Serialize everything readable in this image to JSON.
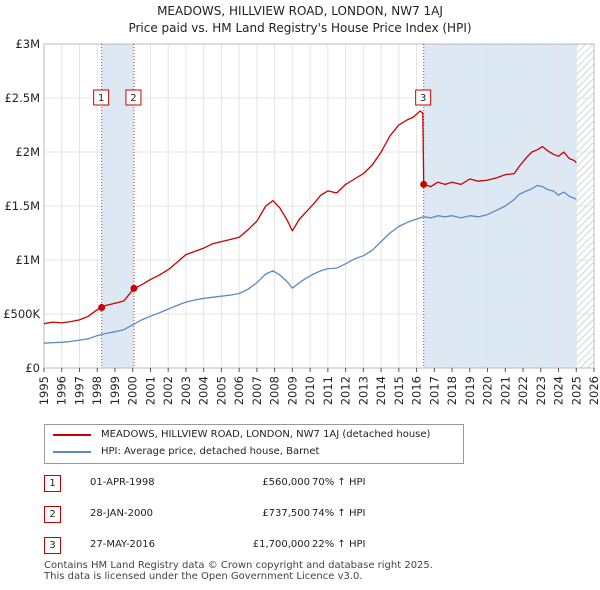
{
  "title": "MEADOWS, HILLVIEW ROAD, LONDON, NW7 1AJ",
  "subtitle": "Price paid vs. HM Land Registry's House Price Index (HPI)",
  "colors": {
    "property": "#cc0000",
    "hpi": "#5b8ac6",
    "shade": "#dde8f5",
    "hatch": "#c0c8d4",
    "grid": "#e4e4e4"
  },
  "chart_data": {
    "type": "line",
    "title": "MEADOWS, HILLVIEW ROAD, LONDON, NW7 1AJ",
    "subtitle": "Price paid vs. HM Land Registry's House Price Index (HPI)",
    "xlim": [
      1995,
      2026
    ],
    "ylim": [
      0,
      3000000
    ],
    "y_ticks": [
      {
        "value": 0,
        "label": "£0"
      },
      {
        "value": 500000,
        "label": "£500K"
      },
      {
        "value": 1000000,
        "label": "£1M"
      },
      {
        "value": 1500000,
        "label": "£1.5M"
      },
      {
        "value": 2000000,
        "label": "£2M"
      },
      {
        "value": 2500000,
        "label": "£2.5M"
      },
      {
        "value": 3000000,
        "label": "£3M"
      }
    ],
    "x_ticks": [
      "1995",
      "1996",
      "1997",
      "1998",
      "1999",
      "2000",
      "2001",
      "2002",
      "2003",
      "2004",
      "2005",
      "2006",
      "2007",
      "2008",
      "2009",
      "2010",
      "2011",
      "2012",
      "2013",
      "2014",
      "2015",
      "2016",
      "2017",
      "2018",
      "2019",
      "2020",
      "2021",
      "2022",
      "2023",
      "2024",
      "2025",
      "2026"
    ],
    "shaded_ranges": [
      [
        1998.25,
        2000.07
      ],
      [
        2016.4,
        2025.0
      ]
    ],
    "hatched_range": [
      2025.0,
      2026.0
    ],
    "series": [
      {
        "name": "MEADOWS, HILLVIEW ROAD, LONDON, NW7 1AJ (detached house)",
        "color": "#cc0000",
        "x": [
          1995.0,
          1995.5,
          1996.0,
          1996.5,
          1997.0,
          1997.5,
          1998.0,
          1998.25,
          1998.5,
          1999.0,
          1999.5,
          2000.07,
          2000.5,
          2001.0,
          2001.5,
          2002.0,
          2002.5,
          2003.0,
          2003.5,
          2004.0,
          2004.5,
          2005.0,
          2005.5,
          2006.0,
          2006.5,
          2007.0,
          2007.5,
          2007.9,
          2008.3,
          2008.7,
          2009.0,
          2009.4,
          2009.8,
          2010.2,
          2010.6,
          2011.0,
          2011.5,
          2012.0,
          2012.5,
          2013.0,
          2013.5,
          2014.0,
          2014.5,
          2015.0,
          2015.5,
          2015.8,
          2016.0,
          2016.2,
          2016.35,
          2016.4,
          2016.8,
          2017.2,
          2017.6,
          2018.0,
          2018.5,
          2019.0,
          2019.5,
          2020.0,
          2020.5,
          2021.0,
          2021.5,
          2021.8,
          2022.2,
          2022.5,
          2022.8,
          2023.1,
          2023.4,
          2023.7,
          2024.0,
          2024.3,
          2024.6,
          2024.9,
          2025.0
        ],
        "y": [
          410000,
          425000,
          418000,
          430000,
          445000,
          480000,
          540000,
          560000,
          580000,
          600000,
          620000,
          737500,
          770000,
          820000,
          860000,
          910000,
          980000,
          1050000,
          1080000,
          1110000,
          1150000,
          1170000,
          1190000,
          1210000,
          1280000,
          1360000,
          1500000,
          1550000,
          1480000,
          1370000,
          1270000,
          1380000,
          1450000,
          1520000,
          1600000,
          1640000,
          1620000,
          1700000,
          1750000,
          1800000,
          1880000,
          2000000,
          2150000,
          2250000,
          2300000,
          2320000,
          2350000,
          2380000,
          2360000,
          1700000,
          1680000,
          1720000,
          1700000,
          1720000,
          1700000,
          1750000,
          1730000,
          1740000,
          1760000,
          1790000,
          1800000,
          1870000,
          1950000,
          2000000,
          2020000,
          2050000,
          2010000,
          1980000,
          1960000,
          2000000,
          1940000,
          1920000,
          1900000
        ]
      },
      {
        "name": "HPI: Average price, detached house, Barnet",
        "color": "#5b8ac6",
        "x": [
          1995.0,
          1995.5,
          1996.0,
          1996.5,
          1997.0,
          1997.5,
          1998.0,
          1998.5,
          1999.0,
          1999.5,
          2000.0,
          2000.5,
          2001.0,
          2001.5,
          2002.0,
          2002.5,
          2003.0,
          2003.5,
          2004.0,
          2004.5,
          2005.0,
          2005.5,
          2006.0,
          2006.5,
          2007.0,
          2007.5,
          2007.9,
          2008.3,
          2008.7,
          2009.0,
          2009.4,
          2009.8,
          2010.2,
          2010.6,
          2011.0,
          2011.5,
          2012.0,
          2012.5,
          2013.0,
          2013.5,
          2014.0,
          2014.5,
          2015.0,
          2015.5,
          2016.0,
          2016.4,
          2016.8,
          2017.2,
          2017.6,
          2018.0,
          2018.5,
          2019.0,
          2019.5,
          2020.0,
          2020.5,
          2021.0,
          2021.5,
          2021.8,
          2022.2,
          2022.5,
          2022.8,
          2023.1,
          2023.4,
          2023.7,
          2024.0,
          2024.3,
          2024.6,
          2024.9,
          2025.0
        ],
        "y": [
          230000,
          235000,
          238000,
          245000,
          258000,
          270000,
          300000,
          320000,
          335000,
          355000,
          400000,
          445000,
          480000,
          510000,
          545000,
          580000,
          610000,
          630000,
          645000,
          655000,
          665000,
          675000,
          690000,
          730000,
          790000,
          870000,
          900000,
          860000,
          800000,
          740000,
          790000,
          835000,
          870000,
          900000,
          920000,
          925000,
          965000,
          1010000,
          1040000,
          1090000,
          1170000,
          1250000,
          1310000,
          1350000,
          1380000,
          1400000,
          1390000,
          1410000,
          1400000,
          1410000,
          1390000,
          1410000,
          1400000,
          1420000,
          1460000,
          1500000,
          1560000,
          1610000,
          1640000,
          1660000,
          1690000,
          1680000,
          1650000,
          1640000,
          1600000,
          1630000,
          1590000,
          1570000,
          1560000
        ]
      }
    ],
    "markers": [
      {
        "label": "1",
        "x": 1998.25,
        "y": 560000
      },
      {
        "label": "2",
        "x": 2000.07,
        "y": 737500
      },
      {
        "label": "3",
        "x": 2016.4,
        "y": 1700000
      }
    ]
  },
  "legend": {
    "property_label": "MEADOWS, HILLVIEW ROAD, LONDON, NW7 1AJ (detached house)",
    "hpi_label": "HPI: Average price, detached house, Barnet"
  },
  "transactions": [
    {
      "num": "1",
      "date": "01-APR-1998",
      "price": "£560,000",
      "hpi": "70% ↑ HPI"
    },
    {
      "num": "2",
      "date": "28-JAN-2000",
      "price": "£737,500",
      "hpi": "74% ↑ HPI"
    },
    {
      "num": "3",
      "date": "27-MAY-2016",
      "price": "£1,700,000",
      "hpi": "22% ↑ HPI"
    }
  ],
  "footer": {
    "line1": "Contains HM Land Registry data © Crown copyright and database right 2025.",
    "line2": "This data is licensed under the Open Government Licence v3.0."
  }
}
